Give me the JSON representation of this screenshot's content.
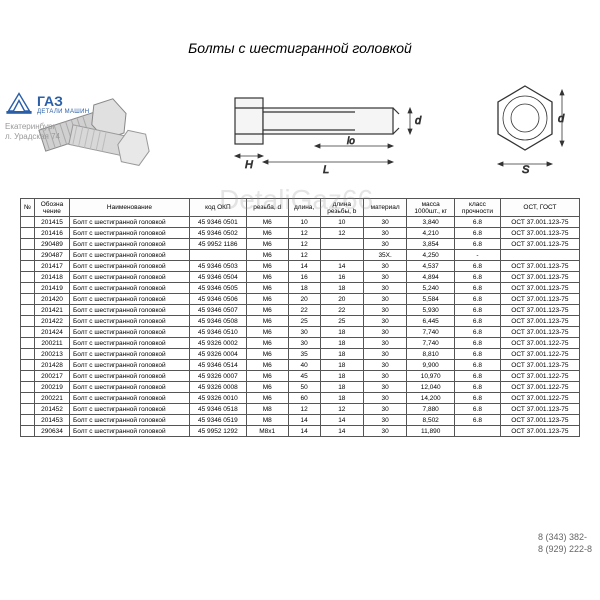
{
  "title": "Болты с шестигранной головкой",
  "logo": {
    "brand": "ГАЗ",
    "sub": "ДЕТАЛИ МАШИН"
  },
  "address": {
    "line1": "Екатеринбург",
    "line2": "л. Урадская 74"
  },
  "watermark": "DetaliGaz66.",
  "phones": {
    "p1": "8 (343) 382-",
    "p2": "8 (929) 222-8"
  },
  "drawing_labels": {
    "H": "H",
    "L": "L",
    "lo": "lo",
    "d": "d",
    "S": "S"
  },
  "columns": [
    "№",
    "Обозна\nчение",
    "Наименование",
    "код ОКП",
    "резьба, d",
    "длина,",
    "длина\nрезьбы, b",
    "материал",
    "масса\n1000шт., кг",
    "класс\nпрочности",
    "ОСТ, ГОСТ"
  ],
  "rows": [
    [
      "",
      "201415",
      "Болт с шестигранной головкой",
      "45 9346 0501",
      "М6",
      "10",
      "10",
      "30",
      "3,840",
      "6.8",
      "ОСТ 37.001.123-75"
    ],
    [
      "",
      "201416",
      "Болт с шестигранной головкой",
      "45 9346 0502",
      "М6",
      "12",
      "12",
      "30",
      "4,210",
      "6.8",
      "ОСТ 37.001.123-75"
    ],
    [
      "",
      "290489",
      "Болт с шестигранной головкой",
      "45 9952 1186",
      "М6",
      "12",
      "",
      "30",
      "3,854",
      "6.8",
      "ОСТ 37.001.123-75"
    ],
    [
      "",
      "290487",
      "Болт с шестигранной головкой",
      "",
      "М6",
      "12",
      "",
      "35Х.",
      "4,250",
      "-",
      ""
    ],
    [
      "",
      "201417",
      "Болт с шестигранной головкой",
      "45 9346 0503",
      "М6",
      "14",
      "14",
      "30",
      "4,537",
      "6.8",
      "ОСТ 37.001.123-75"
    ],
    [
      "",
      "201418",
      "Болт с шестигранной головкой",
      "45 9346 0504",
      "М6",
      "16",
      "16",
      "30",
      "4,894",
      "6.8",
      "ОСТ 37.001.123-75"
    ],
    [
      "",
      "201419",
      "Болт с шестигранной головкой",
      "45 9346 0505",
      "М6",
      "18",
      "18",
      "30",
      "5,240",
      "6.8",
      "ОСТ 37.001.123-75"
    ],
    [
      "",
      "201420",
      "Болт с шестигранной головкой",
      "45 9346 0506",
      "М6",
      "20",
      "20",
      "30",
      "5,584",
      "6.8",
      "ОСТ 37.001.123-75"
    ],
    [
      "",
      "201421",
      "Болт с шестигранной головкой",
      "45 9346 0507",
      "М6",
      "22",
      "22",
      "30",
      "5,930",
      "6.8",
      "ОСТ 37.001.123-75"
    ],
    [
      "",
      "201422",
      "Болт с шестигранной головкой",
      "45 9346 0508",
      "М6",
      "25",
      "25",
      "30",
      "6,445",
      "6.8",
      "ОСТ 37.001.123-75"
    ],
    [
      "",
      "201424",
      "Болт с шестигранной головкой",
      "45 9346 0510",
      "М6",
      "30",
      "18",
      "30",
      "7,740",
      "6.8",
      "ОСТ 37.001.123-75"
    ],
    [
      "",
      "200211",
      "Болт с шестигранной головкой",
      "45 9326 0002",
      "М6",
      "30",
      "18",
      "30",
      "7,740",
      "6.8",
      "ОСТ 37.001.122-75"
    ],
    [
      "",
      "200213",
      "Болт с шестигранной головкой",
      "45 9326 0004",
      "М6",
      "35",
      "18",
      "30",
      "8,810",
      "6.8",
      "ОСТ 37.001.122-75"
    ],
    [
      "",
      "201428",
      "Болт с шестигранной головкой",
      "45 9346 0514",
      "М6",
      "40",
      "18",
      "30",
      "9,900",
      "6.8",
      "ОСТ 37.001.123-75"
    ],
    [
      "",
      "200217",
      "Болт с шестигранной головкой",
      "45 9326 0007",
      "М6",
      "45",
      "18",
      "30",
      "10,970",
      "6.8",
      "ОСТ 37.001.122-75"
    ],
    [
      "",
      "200219",
      "Болт с шестигранной головкой",
      "45 9326 0008",
      "М6",
      "50",
      "18",
      "30",
      "12,040",
      "6.8",
      "ОСТ 37.001.122-75"
    ],
    [
      "",
      "200221",
      "Болт с шестигранной головкой",
      "45 9326 0010",
      "М6",
      "60",
      "18",
      "30",
      "14,200",
      "6.8",
      "ОСТ 37.001.122-75"
    ],
    [
      "",
      "201452",
      "Болт с шестигранной головкой",
      "45 9346 0518",
      "М8",
      "12",
      "12",
      "30",
      "7,880",
      "6.8",
      "ОСТ 37.001.123-75"
    ],
    [
      "",
      "201453",
      "Болт с шестигранной головкой",
      "45 9346 0519",
      "М8",
      "14",
      "14",
      "30",
      "8,502",
      "6.8",
      "ОСТ 37.001.123-75"
    ],
    [
      "",
      "290634",
      "Болт с шестигранной головкой",
      "45 9952 1292",
      "М8х1",
      "14",
      "14",
      "30",
      "11,890",
      "",
      "ОСТ 37.001.123-75"
    ]
  ],
  "colors": {
    "line": "#333333",
    "logo_blue": "#2a5fa8",
    "bolt_fill": "#d8d8d8"
  }
}
